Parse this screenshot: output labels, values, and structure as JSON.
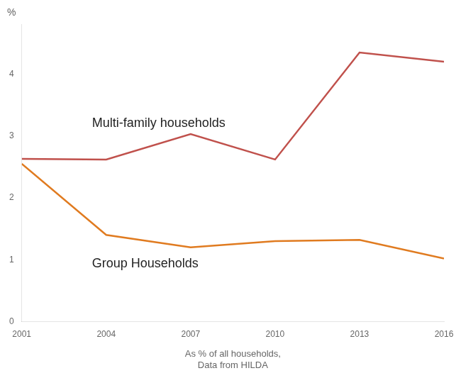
{
  "chart_data": {
    "type": "line",
    "x": [
      2001,
      2004,
      2007,
      2010,
      2013,
      2016
    ],
    "series": [
      {
        "name": "Multi-family households",
        "color": "#c0514c",
        "values": [
          2.63,
          2.62,
          3.03,
          2.62,
          4.35,
          4.2
        ]
      },
      {
        "name": "Group Households",
        "color": "#e07b20",
        "values": [
          2.55,
          1.4,
          1.2,
          1.3,
          1.32,
          1.02
        ]
      }
    ],
    "xlabel": "As % of all households,\nData from HILDA",
    "ylabel": "%",
    "xlim": [
      2001,
      2016
    ],
    "xticks": [
      2001,
      2004,
      2007,
      2010,
      2013,
      2016
    ],
    "ylim": [
      0,
      4.8
    ],
    "yticks": [
      0,
      1,
      2,
      3,
      4
    ],
    "grid": false
  }
}
